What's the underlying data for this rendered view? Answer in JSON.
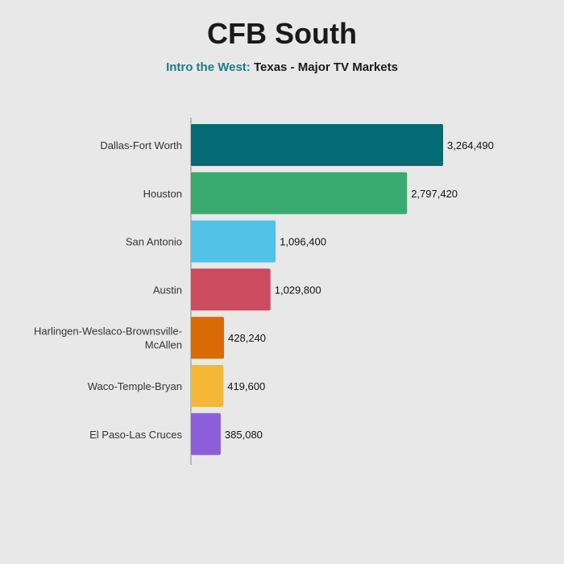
{
  "header": {
    "title": "CFB South",
    "subtitle_accent": "Intro the West:",
    "subtitle_main": "Texas - Major TV Markets"
  },
  "chart_data": {
    "type": "bar",
    "orientation": "horizontal",
    "title": "CFB South",
    "subtitle": "Intro the West: Texas - Major TV Markets",
    "categories": [
      [
        "Dallas-Fort Worth"
      ],
      [
        "Houston"
      ],
      [
        "San Antonio"
      ],
      [
        "Austin"
      ],
      [
        "Harlingen-Weslaco-Brownsville-",
        "McAllen"
      ],
      [
        "Waco-Temple-Bryan"
      ],
      [
        "El Paso-Las Cruces"
      ]
    ],
    "values": [
      3264490,
      2797420,
      1096400,
      1029800,
      428240,
      419600,
      385080
    ],
    "value_labels": [
      "3,264,490",
      "2,797,420",
      "1,096,400",
      "1,029,800",
      "428,240",
      "419,600",
      "385,080"
    ],
    "colors": [
      "#046a73",
      "#3aab6e",
      "#52c2e6",
      "#cc4b5f",
      "#d96a05",
      "#f4b836",
      "#8d5ed9"
    ],
    "xlim": [
      0,
      3264490
    ],
    "grid": false,
    "legend": "none"
  }
}
